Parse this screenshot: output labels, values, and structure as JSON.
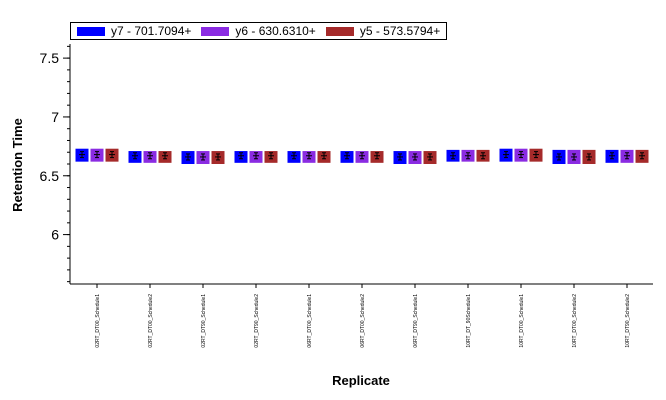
{
  "chart_data": {
    "type": "bar",
    "title": "",
    "xlabel": "Replicate",
    "ylabel": "Retention Time",
    "ylim": [
      5.58,
      7.62
    ],
    "yticks": [
      6,
      6.5,
      7,
      7.5
    ],
    "legend_position": "top-left",
    "categories": [
      "02RT_DT00_Schedule1",
      "02RT_DT00_Schedule2",
      "02RT_DT90_Schedule1",
      "02RT_DT90_Schedule2",
      "06RT_DT00_Schedule1",
      "06RT_DT00_Schedule2",
      "06RT_DT90_Schedule1",
      "10RT_DT_90Schedule1",
      "10RT_DT00_Schedule1",
      "10RT_DT00_Schedule2",
      "10RT_DT90_Schedule2"
    ],
    "series": [
      {
        "name": "y7 - 701.7094+",
        "color": "#0000ff",
        "range_top": [
          6.73,
          6.71,
          6.71,
          6.71,
          6.71,
          6.71,
          6.71,
          6.72,
          6.73,
          6.72,
          6.72
        ],
        "range_bottom": [
          6.62,
          6.61,
          6.6,
          6.61,
          6.61,
          6.61,
          6.6,
          6.62,
          6.62,
          6.6,
          6.61
        ],
        "values": [
          6.68,
          6.67,
          6.66,
          6.67,
          6.67,
          6.67,
          6.66,
          6.67,
          6.68,
          6.66,
          6.67
        ]
      },
      {
        "name": "y6 - 630.6310+",
        "color": "#8a2be2",
        "range_top": [
          6.73,
          6.71,
          6.71,
          6.71,
          6.71,
          6.71,
          6.71,
          6.72,
          6.73,
          6.72,
          6.72
        ],
        "range_bottom": [
          6.62,
          6.61,
          6.6,
          6.61,
          6.61,
          6.61,
          6.6,
          6.62,
          6.62,
          6.6,
          6.61
        ],
        "values": [
          6.68,
          6.67,
          6.66,
          6.67,
          6.67,
          6.67,
          6.66,
          6.67,
          6.68,
          6.66,
          6.67
        ]
      },
      {
        "name": "y5 - 573.5794+",
        "color": "#a52a2a",
        "range_top": [
          6.73,
          6.71,
          6.71,
          6.71,
          6.71,
          6.71,
          6.71,
          6.72,
          6.73,
          6.72,
          6.72
        ],
        "range_bottom": [
          6.62,
          6.61,
          6.6,
          6.61,
          6.61,
          6.61,
          6.6,
          6.62,
          6.62,
          6.6,
          6.61
        ],
        "values": [
          6.68,
          6.67,
          6.66,
          6.67,
          6.67,
          6.67,
          6.66,
          6.67,
          6.68,
          6.66,
          6.67
        ]
      }
    ]
  }
}
